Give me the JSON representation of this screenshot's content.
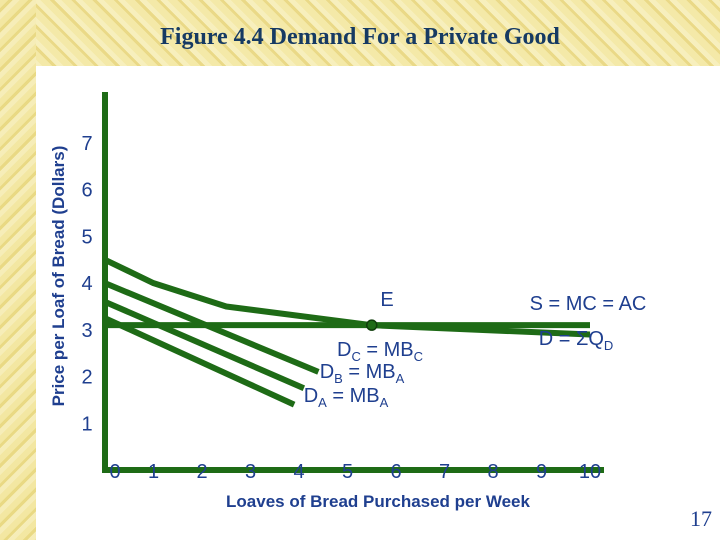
{
  "slide": {
    "title": "Figure 4.4 Demand For a Private Good",
    "page_number": "17"
  },
  "colors": {
    "line": "#1e6b16",
    "axis": "#1e6b16",
    "text": "#1f3f8f",
    "title": "#163a63",
    "point": "#1e6b16"
  },
  "chart_data": {
    "type": "line",
    "xlabel": "Loaves of Bread Purchased per Week",
    "ylabel": "Price per Loaf of Bread (Dollars)",
    "xlim": [
      0,
      10
    ],
    "ylim": [
      0,
      7
    ],
    "x_ticks": [
      "0",
      "1",
      "2",
      "3",
      "4",
      "5",
      "6",
      "7",
      "8",
      "9",
      "10"
    ],
    "y_ticks": [
      "1",
      "2",
      "3",
      "4",
      "5",
      "6",
      "7"
    ],
    "grid": false,
    "series": [
      {
        "key": "supply",
        "points": [
          [
            0,
            3.1
          ],
          [
            10,
            3.1
          ]
        ]
      },
      {
        "key": "market_demand",
        "points": [
          [
            0,
            4.5
          ],
          [
            1,
            4.0
          ],
          [
            2.5,
            3.5
          ],
          [
            5.5,
            3.1
          ],
          [
            10,
            2.9
          ]
        ]
      },
      {
        "key": "demand_c",
        "points": [
          [
            0,
            4.0
          ],
          [
            4.4,
            2.1
          ]
        ]
      },
      {
        "key": "demand_b",
        "points": [
          [
            0,
            3.6
          ],
          [
            4.1,
            1.75
          ]
        ]
      },
      {
        "key": "demand_a",
        "points": [
          [
            0,
            3.25
          ],
          [
            3.9,
            1.4
          ]
        ]
      }
    ],
    "point_E": {
      "label": "E",
      "x": 5.5,
      "y": 3.1
    },
    "annotations": {
      "supply": "S = MC = AC",
      "market_demand": {
        "text": "D = ΣQ",
        "sub": "D"
      },
      "demand_c": {
        "d": "D",
        "d_sub": "C",
        "mid": " = MB",
        "mb_sub": "C"
      },
      "demand_b": {
        "d": "D",
        "d_sub": "B",
        "mid": " = MB",
        "mb_sub": "A"
      },
      "demand_a": {
        "d": "D",
        "d_sub": "A",
        "mid": " = MB",
        "mb_sub": "A"
      }
    }
  }
}
